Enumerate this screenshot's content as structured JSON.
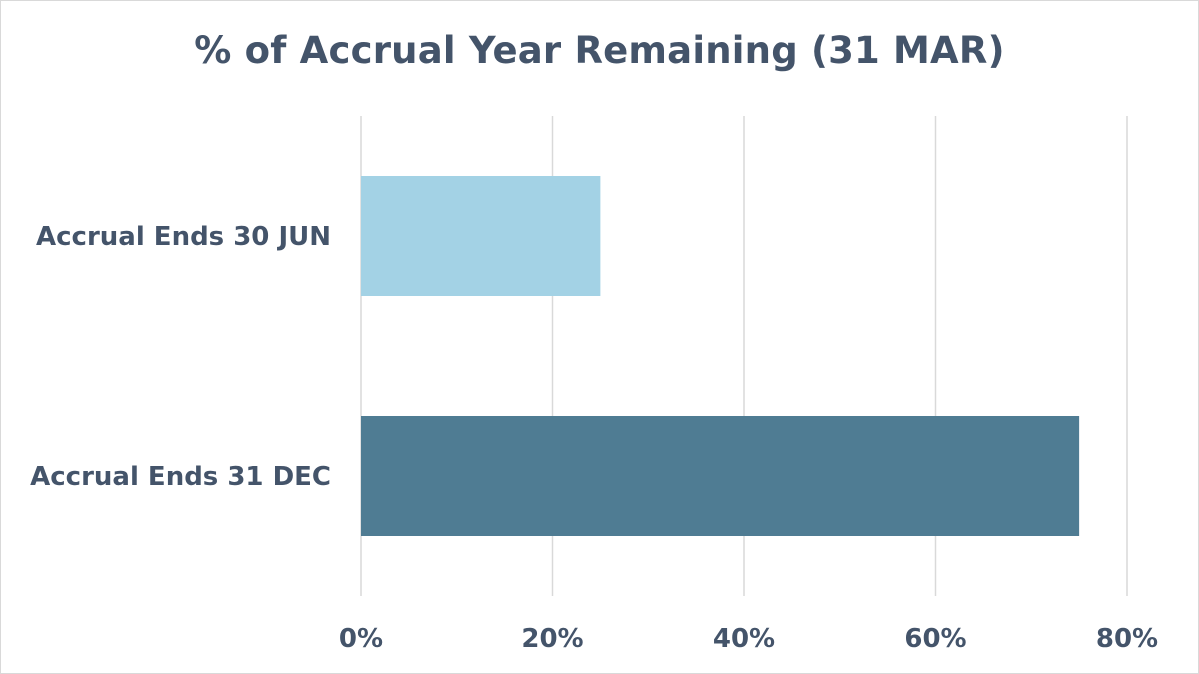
{
  "chart_data": {
    "type": "bar",
    "orientation": "horizontal",
    "title": "% of Accrual Year Remaining (31 MAR)",
    "categories": [
      "Accrual Ends 30 JUN",
      "Accrual Ends 31 DEC"
    ],
    "values": [
      25,
      75
    ],
    "xlim": [
      0,
      80
    ],
    "x_ticks": [
      0,
      20,
      40,
      60,
      80
    ],
    "x_tick_labels": [
      "0%",
      "20%",
      "40%",
      "60%",
      "80%"
    ],
    "grid": "vertical",
    "legend": "none",
    "colors": [
      "#a3d2e5",
      "#4f7c93"
    ]
  }
}
